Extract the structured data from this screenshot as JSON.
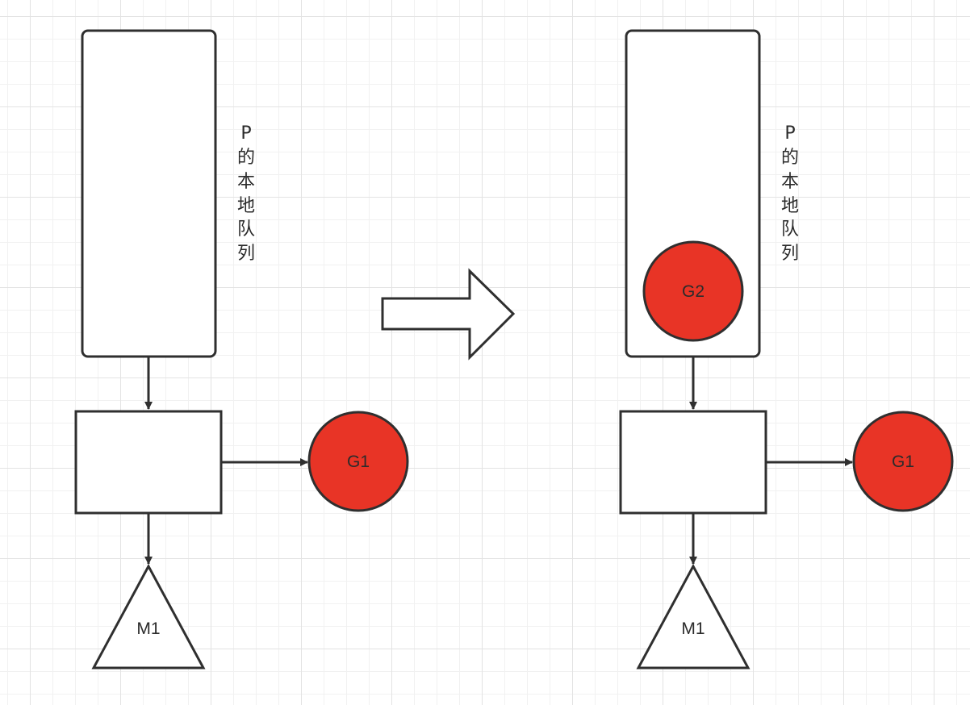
{
  "colors": {
    "stroke": "#2f2f2f",
    "goroutine_fill": "#e83426",
    "background": "#ffffff"
  },
  "left": {
    "queue_label": [
      "P",
      "的",
      "本",
      "地",
      "队",
      "列"
    ],
    "goroutine": "G1",
    "machine": "M1"
  },
  "transition_arrow": "right-arrow",
  "right": {
    "queue_label": [
      "P",
      "的",
      "本",
      "地",
      "队",
      "列"
    ],
    "queued_goroutine": "G2",
    "goroutine": "G1",
    "machine": "M1"
  }
}
